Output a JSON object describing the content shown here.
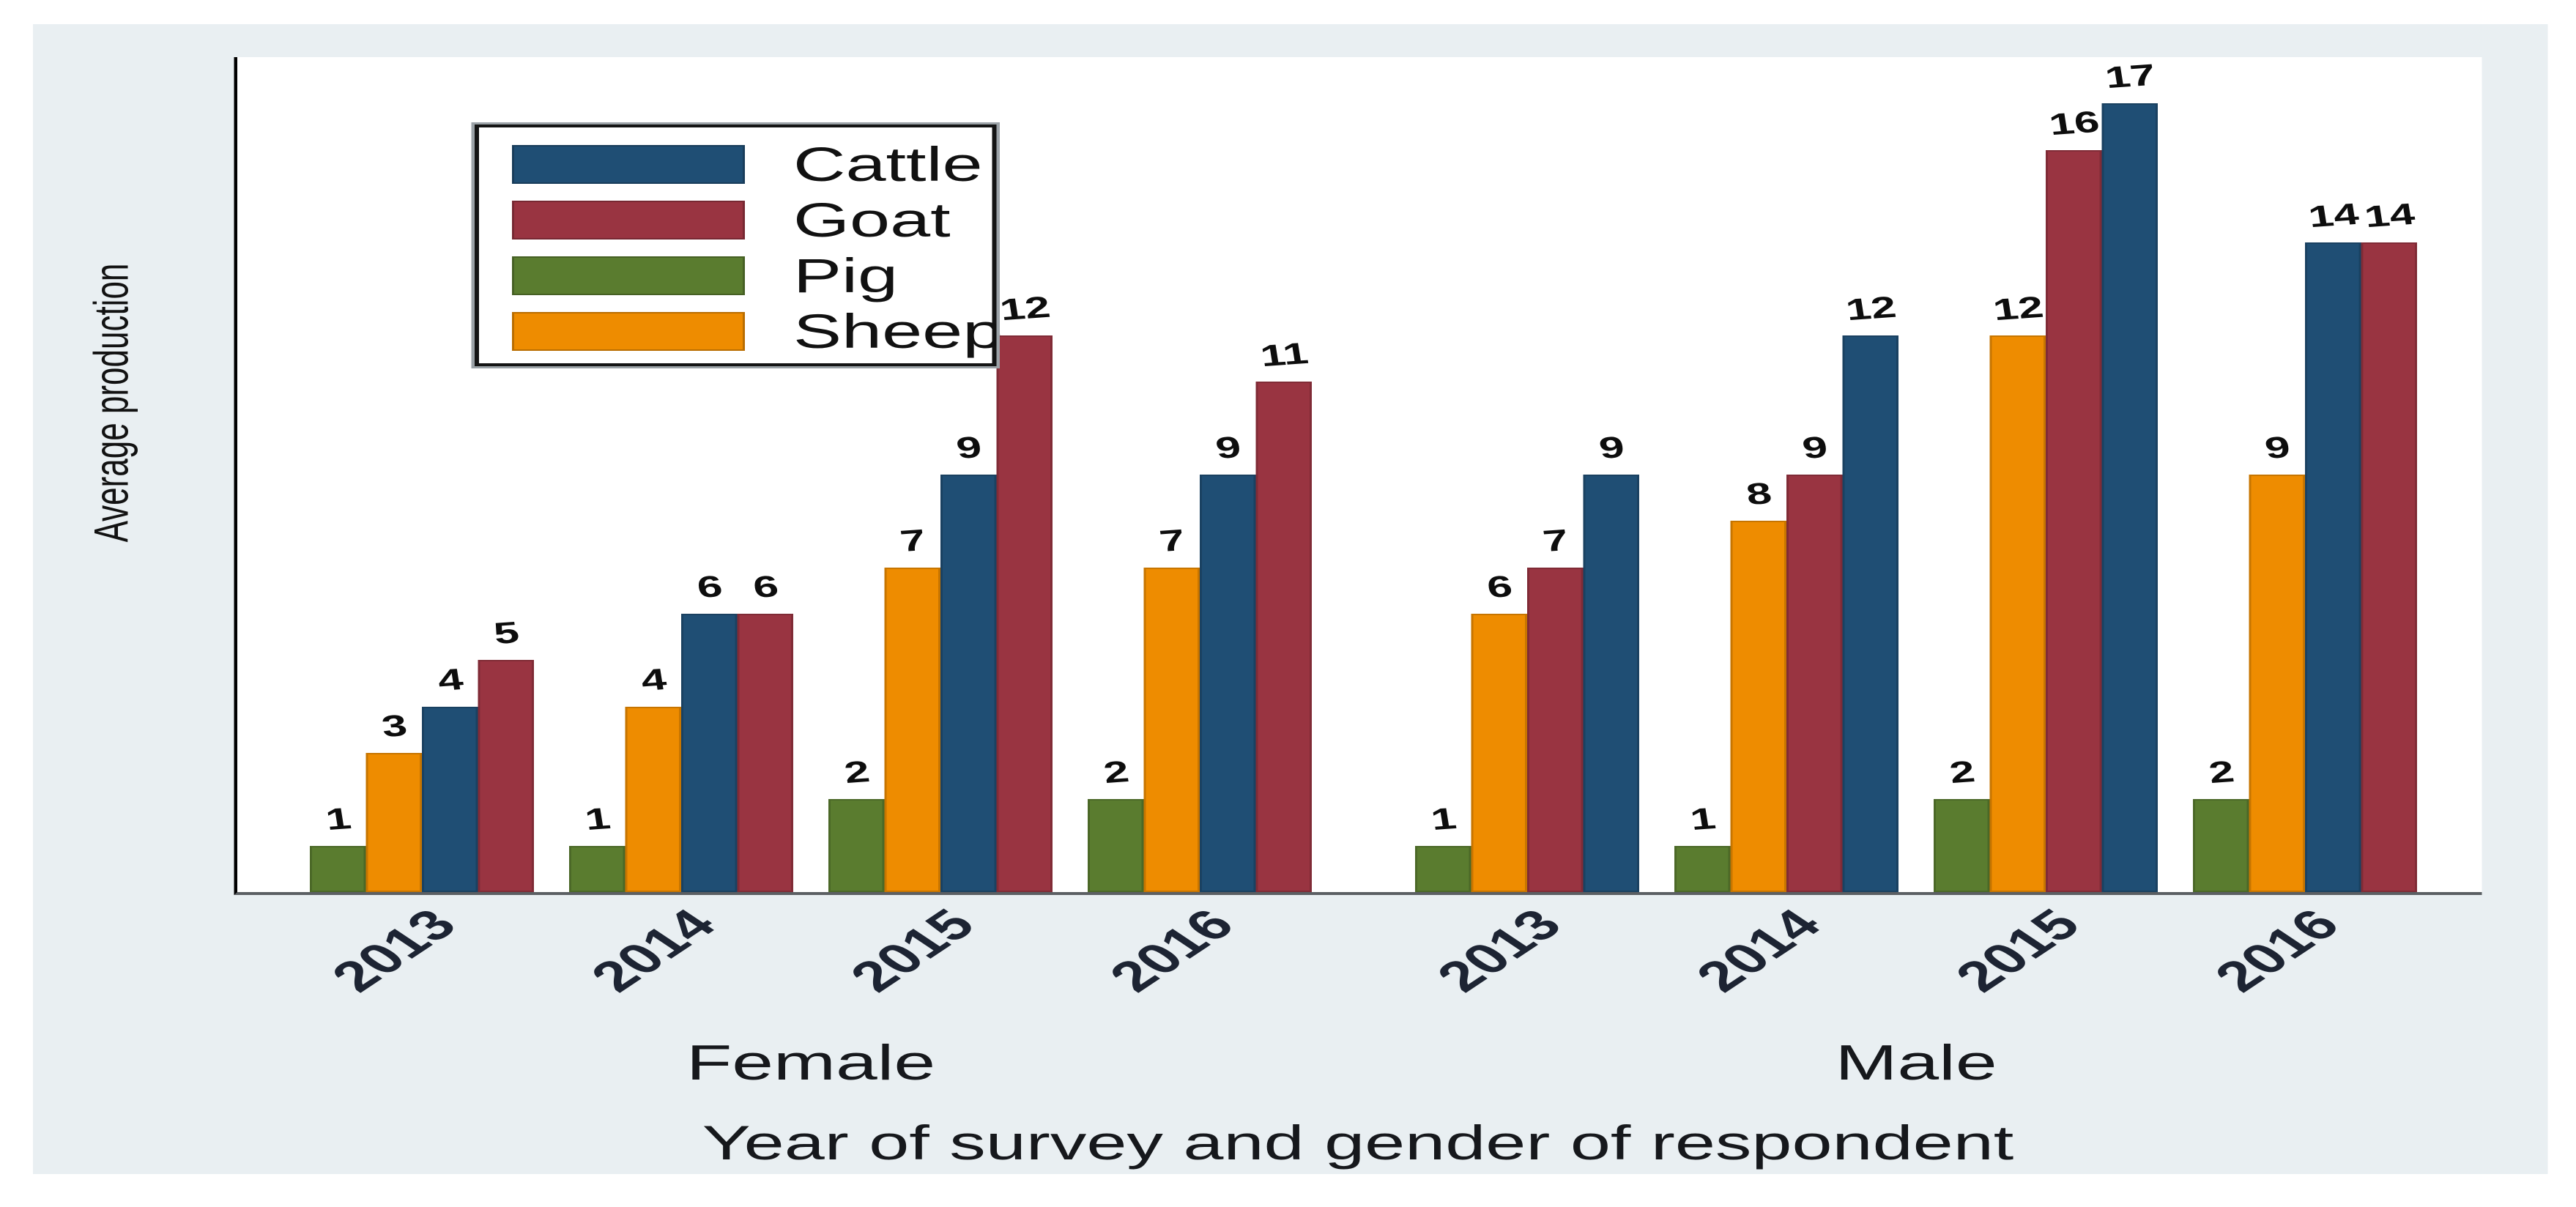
{
  "chart_data": {
    "type": "bar",
    "title": "",
    "ylabel": "Average production",
    "xlabel": "Year of survey and gender of respondent",
    "ylim": [
      0,
      18
    ],
    "grid": false,
    "y_axis_ticks": "none",
    "legend_position": "top-left-inside",
    "legend": [
      "Cattle",
      "Goat",
      "Pig",
      "Sheep"
    ],
    "series_colors": {
      "Cattle": "#1f4e74",
      "Goat": "#993441",
      "Pig": "#5a7c2f",
      "Sheep": "#ee8c00"
    },
    "bar_value_labels": true,
    "panels": [
      {
        "label": "Female",
        "groups": [
          {
            "year": "2013",
            "bars": [
              {
                "series": "Pig",
                "value": 1
              },
              {
                "series": "Sheep",
                "value": 3
              },
              {
                "series": "Cattle",
                "value": 4
              },
              {
                "series": "Goat",
                "value": 5
              }
            ]
          },
          {
            "year": "2014",
            "bars": [
              {
                "series": "Pig",
                "value": 1
              },
              {
                "series": "Sheep",
                "value": 4
              },
              {
                "series": "Cattle",
                "value": 6
              },
              {
                "series": "Goat",
                "value": 6
              }
            ]
          },
          {
            "year": "2015",
            "bars": [
              {
                "series": "Pig",
                "value": 2
              },
              {
                "series": "Sheep",
                "value": 7
              },
              {
                "series": "Cattle",
                "value": 9
              },
              {
                "series": "Goat",
                "value": 12
              }
            ]
          },
          {
            "year": "2016",
            "bars": [
              {
                "series": "Pig",
                "value": 2
              },
              {
                "series": "Sheep",
                "value": 7
              },
              {
                "series": "Cattle",
                "value": 9
              },
              {
                "series": "Goat",
                "value": 11
              }
            ]
          }
        ]
      },
      {
        "label": "Male",
        "groups": [
          {
            "year": "2013",
            "bars": [
              {
                "series": "Pig",
                "value": 1
              },
              {
                "series": "Sheep",
                "value": 6
              },
              {
                "series": "Goat",
                "value": 7
              },
              {
                "series": "Cattle",
                "value": 9
              }
            ]
          },
          {
            "year": "2014",
            "bars": [
              {
                "series": "Pig",
                "value": 1
              },
              {
                "series": "Sheep",
                "value": 8
              },
              {
                "series": "Goat",
                "value": 9
              },
              {
                "series": "Cattle",
                "value": 12
              }
            ]
          },
          {
            "year": "2015",
            "bars": [
              {
                "series": "Pig",
                "value": 2
              },
              {
                "series": "Sheep",
                "value": 12
              },
              {
                "series": "Goat",
                "value": 16
              },
              {
                "series": "Cattle",
                "value": 17
              }
            ]
          },
          {
            "year": "2016",
            "bars": [
              {
                "series": "Pig",
                "value": 2
              },
              {
                "series": "Sheep",
                "value": 9
              },
              {
                "series": "Cattle",
                "value": 14
              },
              {
                "series": "Goat",
                "value": 14
              }
            ]
          }
        ]
      }
    ]
  },
  "colors": {
    "figure_bg": "#e9eff2",
    "plot_bg": "#ffffff",
    "axis_line": "#5b5f63",
    "plot_border": "#000000",
    "legend_border": "#141414",
    "value_label_text": "#0d0d0d",
    "year_label_text": "#1d2433",
    "text": "#16181c"
  }
}
